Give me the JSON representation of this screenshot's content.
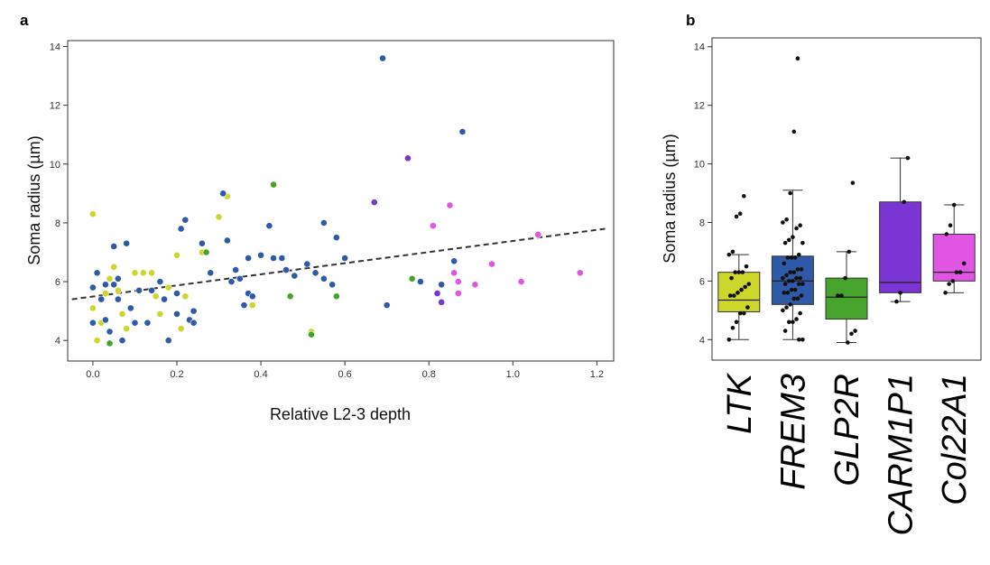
{
  "panels": {
    "a": "a",
    "b": "b"
  },
  "colors": {
    "LTK": "#cdd62b",
    "FREM3": "#2e5aa8",
    "GLP2R": "#46a32b",
    "CARM1P1": "#7b35d4",
    "Col22A1": "#e055e3",
    "trend": "#333333",
    "jitter": "#111111"
  },
  "chart_data": [
    {
      "type": "scatter",
      "panel": "a",
      "xlabel": "Relative L2-3 depth",
      "ylabel": "Soma radius (µm)",
      "xlim": [
        -0.06,
        1.24
      ],
      "ylim": [
        3.3,
        14.2
      ],
      "xticks": [
        "0.0",
        "0.2",
        "0.4",
        "0.6",
        "0.8",
        "1.0",
        "1.2"
      ],
      "yticks": [
        "4",
        "6",
        "8",
        "10",
        "12",
        "14"
      ],
      "grid": false,
      "trendline": {
        "x": [
          -0.05,
          1.22
        ],
        "y": [
          5.4,
          7.8
        ],
        "style": "dashed"
      },
      "series": [
        {
          "name": "LTK",
          "points": [
            [
              0.0,
              8.3
            ],
            [
              0.0,
              5.1
            ],
            [
              0.01,
              4.0
            ],
            [
              0.02,
              4.6
            ],
            [
              0.03,
              5.6
            ],
            [
              0.04,
              6.1
            ],
            [
              0.05,
              6.5
            ],
            [
              0.05,
              5.9
            ],
            [
              0.06,
              5.7
            ],
            [
              0.07,
              4.9
            ],
            [
              0.08,
              4.4
            ],
            [
              0.1,
              6.3
            ],
            [
              0.12,
              6.3
            ],
            [
              0.14,
              6.3
            ],
            [
              0.15,
              5.5
            ],
            [
              0.16,
              4.9
            ],
            [
              0.18,
              5.8
            ],
            [
              0.2,
              6.9
            ],
            [
              0.21,
              4.4
            ],
            [
              0.22,
              5.5
            ],
            [
              0.26,
              7.0
            ],
            [
              0.3,
              8.2
            ],
            [
              0.32,
              8.9
            ],
            [
              0.38,
              5.2
            ],
            [
              0.52,
              4.3
            ]
          ]
        },
        {
          "name": "FREM3",
          "points": [
            [
              0.0,
              4.6
            ],
            [
              0.0,
              5.8
            ],
            [
              0.01,
              6.3
            ],
            [
              0.02,
              5.4
            ],
            [
              0.03,
              4.7
            ],
            [
              0.03,
              5.9
            ],
            [
              0.04,
              4.3
            ],
            [
              0.05,
              7.2
            ],
            [
              0.05,
              5.9
            ],
            [
              0.06,
              6.1
            ],
            [
              0.06,
              5.4
            ],
            [
              0.07,
              4.0
            ],
            [
              0.08,
              7.3
            ],
            [
              0.09,
              5.1
            ],
            [
              0.1,
              4.6
            ],
            [
              0.11,
              5.7
            ],
            [
              0.13,
              4.6
            ],
            [
              0.14,
              5.7
            ],
            [
              0.16,
              6.0
            ],
            [
              0.17,
              5.4
            ],
            [
              0.18,
              4.0
            ],
            [
              0.2,
              4.9
            ],
            [
              0.2,
              5.6
            ],
            [
              0.21,
              7.8
            ],
            [
              0.22,
              8.1
            ],
            [
              0.23,
              4.7
            ],
            [
              0.24,
              5.0
            ],
            [
              0.24,
              4.6
            ],
            [
              0.26,
              7.3
            ],
            [
              0.28,
              6.3
            ],
            [
              0.31,
              9.0
            ],
            [
              0.32,
              7.4
            ],
            [
              0.33,
              6.0
            ],
            [
              0.34,
              6.4
            ],
            [
              0.35,
              6.1
            ],
            [
              0.36,
              5.2
            ],
            [
              0.37,
              6.8
            ],
            [
              0.37,
              5.6
            ],
            [
              0.38,
              5.5
            ],
            [
              0.4,
              6.9
            ],
            [
              0.42,
              7.9
            ],
            [
              0.43,
              6.8
            ],
            [
              0.45,
              6.8
            ],
            [
              0.46,
              6.4
            ],
            [
              0.48,
              6.2
            ],
            [
              0.51,
              6.6
            ],
            [
              0.53,
              6.3
            ],
            [
              0.55,
              8.0
            ],
            [
              0.55,
              6.1
            ],
            [
              0.57,
              5.9
            ],
            [
              0.58,
              7.5
            ],
            [
              0.6,
              6.8
            ],
            [
              0.69,
              13.6
            ],
            [
              0.7,
              5.2
            ],
            [
              0.78,
              6.0
            ],
            [
              0.83,
              5.9
            ],
            [
              0.86,
              6.7
            ],
            [
              0.88,
              11.1
            ]
          ]
        },
        {
          "name": "GLP2R",
          "points": [
            [
              0.04,
              3.9
            ],
            [
              0.27,
              7.0
            ],
            [
              0.43,
              9.3
            ],
            [
              0.47,
              5.5
            ],
            [
              0.52,
              4.2
            ],
            [
              0.58,
              5.5
            ],
            [
              0.76,
              6.1
            ]
          ]
        },
        {
          "name": "CARM1P1",
          "points": [
            [
              0.67,
              8.7
            ],
            [
              0.75,
              10.2
            ],
            [
              0.82,
              5.6
            ],
            [
              0.83,
              5.3
            ]
          ]
        },
        {
          "name": "Col22A1",
          "points": [
            [
              0.81,
              7.9
            ],
            [
              0.85,
              8.6
            ],
            [
              0.86,
              6.3
            ],
            [
              0.87,
              5.6
            ],
            [
              0.87,
              6.0
            ],
            [
              0.91,
              5.9
            ],
            [
              0.95,
              6.6
            ],
            [
              1.02,
              6.0
            ],
            [
              1.06,
              7.6
            ],
            [
              1.16,
              6.3
            ]
          ]
        }
      ]
    },
    {
      "type": "box",
      "panel": "b",
      "ylabel": "Soma radius (µm)",
      "ylim": [
        3.3,
        14.3
      ],
      "yticks": [
        "4",
        "6",
        "8",
        "10",
        "12",
        "14"
      ],
      "grid": false,
      "categories": [
        "LTK",
        "FREM3",
        "GLP2R",
        "CARM1P1",
        "Col22A1"
      ],
      "boxes": [
        {
          "name": "LTK",
          "min": 4.0,
          "q1": 4.95,
          "median": 5.35,
          "q3": 6.3,
          "max": 6.9,
          "fliers": [
            8.2,
            8.3,
            8.9
          ],
          "points": [
            4.0,
            4.4,
            4.6,
            4.9,
            4.9,
            5.1,
            5.5,
            5.5,
            5.6,
            5.7,
            5.8,
            5.9,
            6.1,
            6.3,
            6.3,
            6.3,
            6.5,
            6.9,
            7.0,
            8.2,
            8.3,
            8.9
          ]
        },
        {
          "name": "FREM3",
          "min": 4.0,
          "q1": 5.2,
          "median": 6.0,
          "q3": 6.85,
          "max": 9.1,
          "fliers": [
            11.1,
            13.6
          ],
          "points": [
            4.0,
            4.0,
            4.3,
            4.6,
            4.6,
            4.7,
            4.9,
            5.0,
            5.1,
            5.2,
            5.4,
            5.4,
            5.5,
            5.6,
            5.6,
            5.7,
            5.7,
            5.9,
            5.9,
            5.9,
            6.0,
            6.0,
            6.1,
            6.1,
            6.1,
            6.2,
            6.3,
            6.3,
            6.4,
            6.4,
            6.6,
            6.8,
            6.8,
            6.8,
            6.9,
            7.3,
            7.3,
            7.4,
            7.5,
            7.8,
            7.9,
            8.0,
            8.1,
            9.0,
            11.1,
            13.6
          ]
        },
        {
          "name": "GLP2R",
          "min": 3.9,
          "q1": 4.7,
          "median": 5.45,
          "q3": 6.1,
          "max": 7.0,
          "fliers": [
            9.35
          ],
          "points": [
            3.9,
            4.2,
            4.3,
            5.5,
            5.5,
            6.1,
            7.0,
            9.35
          ]
        },
        {
          "name": "CARM1P1",
          "min": 5.3,
          "q1": 5.6,
          "median": 5.95,
          "q3": 8.7,
          "max": 10.2,
          "fliers": [],
          "points": [
            5.3,
            5.6,
            8.7,
            10.2
          ]
        },
        {
          "name": "Col22A1",
          "min": 5.6,
          "q1": 6.0,
          "median": 6.3,
          "q3": 7.6,
          "max": 8.6,
          "fliers": [],
          "points": [
            5.6,
            5.9,
            6.0,
            6.3,
            6.3,
            6.6,
            7.6,
            7.9,
            8.6
          ]
        }
      ]
    }
  ]
}
